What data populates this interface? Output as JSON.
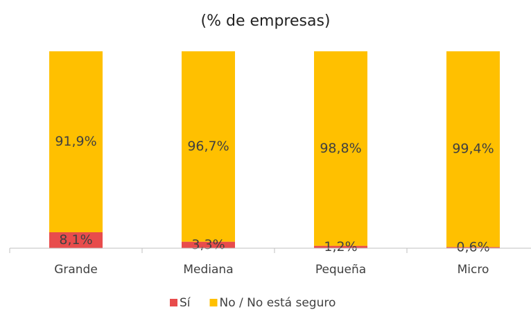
{
  "chart_data": {
    "type": "stacked_bar",
    "title": "(% de empresas)",
    "categories": [
      "Grande",
      "Mediana",
      "Pequeña",
      "Micro"
    ],
    "series": [
      {
        "name": "Sí",
        "color": "#e84c4c",
        "values": [
          8.1,
          3.3,
          1.2,
          0.6
        ],
        "value_labels": [
          "8,1%",
          "3,3%",
          "1,2%",
          "0,6%"
        ]
      },
      {
        "name": "No / No está seguro",
        "color": "#ffc000",
        "values": [
          91.9,
          96.7,
          98.8,
          99.4
        ],
        "value_labels": [
          "91,9%",
          "96,7%",
          "98,8%",
          "99,4%"
        ]
      }
    ],
    "legend": "bottom"
  }
}
